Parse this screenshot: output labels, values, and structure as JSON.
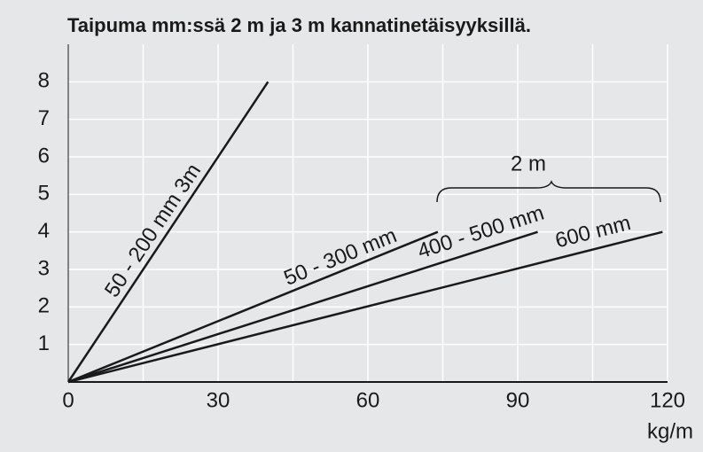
{
  "chart_data": {
    "type": "line",
    "title": "Taipuma mm:ssä 2 m ja 3 m kannatinetäisyyksillä.",
    "x_label": "kg/m",
    "xlim": [
      0,
      120
    ],
    "xticks": [
      0,
      30,
      60,
      90,
      120
    ],
    "x_grid": [
      15,
      30,
      45,
      60,
      75,
      90,
      105,
      120
    ],
    "ylim": [
      0,
      9
    ],
    "yticks": [
      1,
      2,
      3,
      4,
      5,
      6,
      7,
      8
    ],
    "grid": true,
    "series": [
      {
        "name": "50 - 200 mm  3m",
        "color": "#1a1a1a",
        "x": [
          0,
          40
        ],
        "values": [
          0,
          8
        ]
      },
      {
        "name": "50 - 300 mm",
        "color": "#1a1a1a",
        "x": [
          0,
          74
        ],
        "values": [
          0,
          4
        ]
      },
      {
        "name": "400 - 500 mm",
        "color": "#1a1a1a",
        "x": [
          0,
          94
        ],
        "values": [
          0,
          4
        ]
      },
      {
        "name": "600 mm",
        "color": "#1a1a1a",
        "x": [
          0,
          119
        ],
        "values": [
          0,
          4
        ]
      }
    ],
    "annotation": "2 m"
  }
}
